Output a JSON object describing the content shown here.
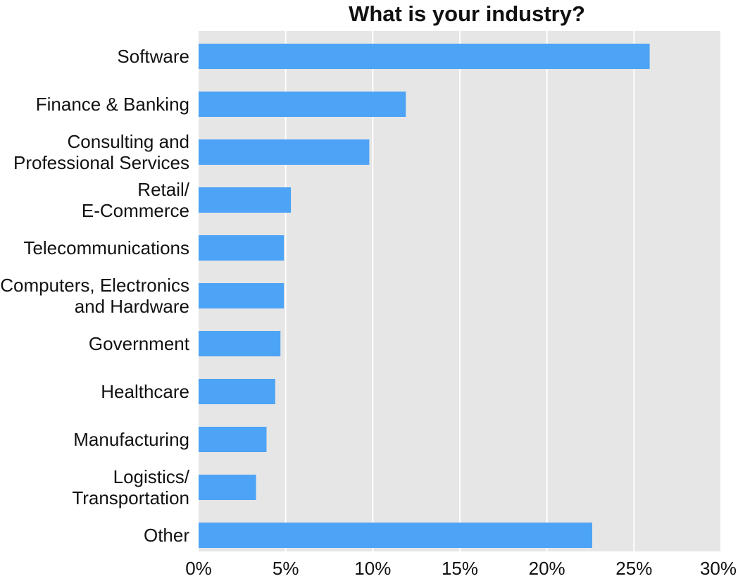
{
  "chart_data": {
    "type": "bar",
    "orientation": "horizontal",
    "title": "What is your industry?",
    "categories": [
      [
        "Software"
      ],
      [
        "Finance & Banking"
      ],
      [
        "Consulting and",
        "Professional Services"
      ],
      [
        "Retail/",
        "E-Commerce"
      ],
      [
        "Telecommunications"
      ],
      [
        "Computers, Electronics",
        "and Hardware"
      ],
      [
        "Government"
      ],
      [
        "Healthcare"
      ],
      [
        "Manufacturing"
      ],
      [
        "Logistics/",
        "Transportation"
      ],
      [
        "Other"
      ]
    ],
    "values": [
      25.9,
      11.9,
      9.8,
      5.3,
      4.9,
      4.9,
      4.7,
      4.4,
      3.9,
      3.3,
      22.6
    ],
    "xlim": [
      0,
      30
    ],
    "xticks": [
      0,
      5,
      10,
      15,
      20,
      25,
      30
    ],
    "xtick_labels": [
      "0%",
      "5%",
      "10%",
      "15%",
      "20%",
      "25%",
      "30%"
    ],
    "grid": "vertical",
    "bar_color": "#4da3f5",
    "plot_background": "#e6e6e6"
  }
}
